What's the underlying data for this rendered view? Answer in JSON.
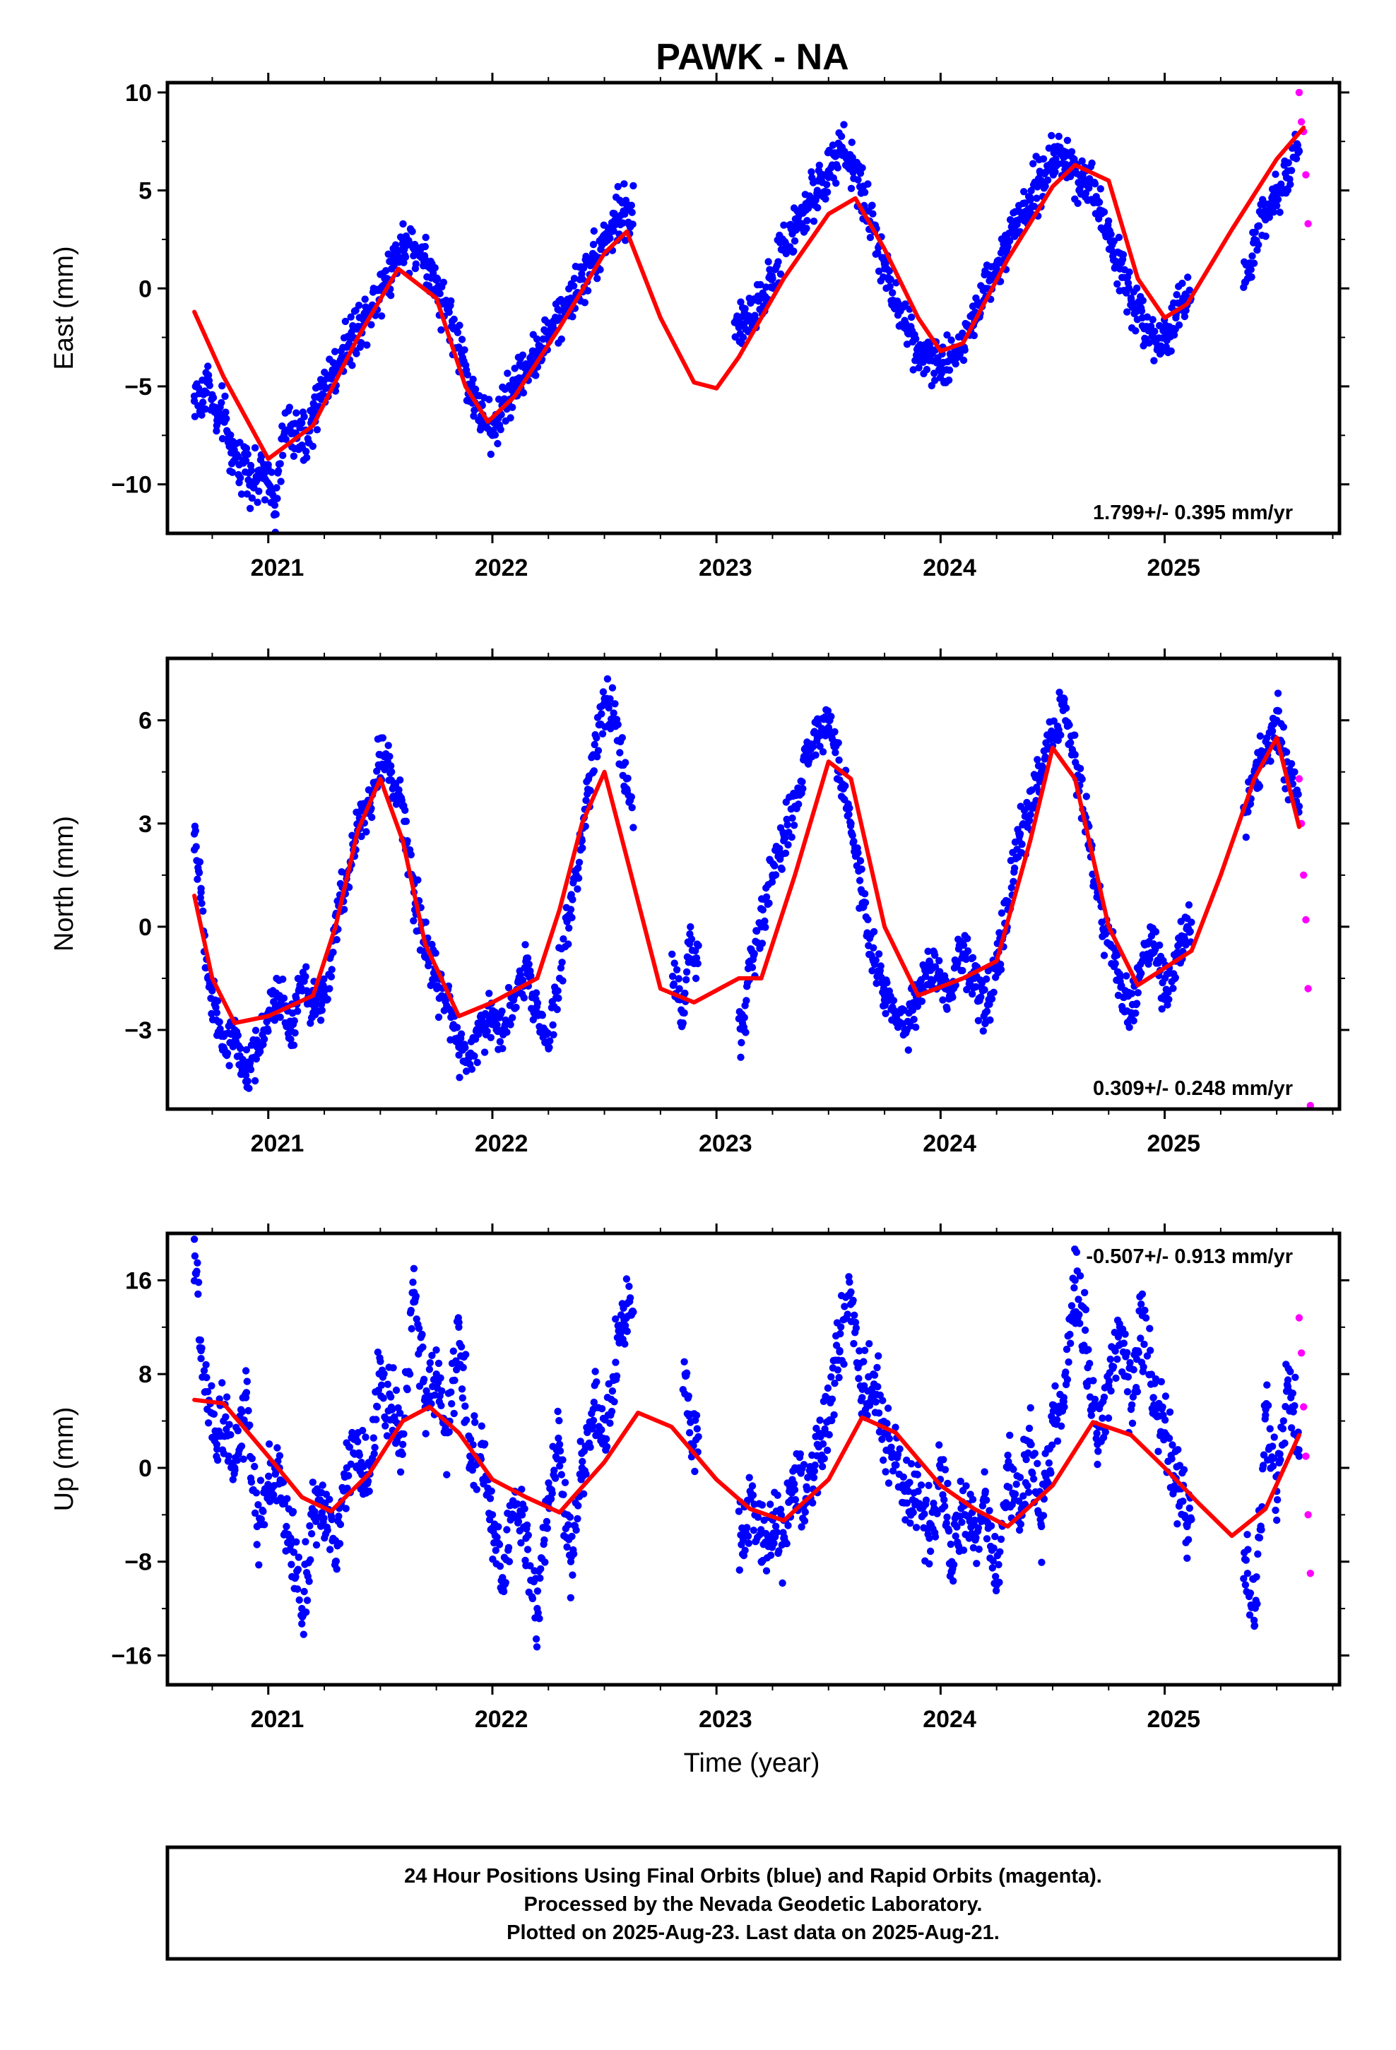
{
  "title": "PAWK - NA",
  "xlabel": "Time (year)",
  "footer": {
    "line1": "24 Hour Positions Using Final Orbits (blue) and Rapid Orbits (magenta).",
    "line2": "Processed by the Nevada Geodetic Laboratory.",
    "line3": "Plotted on 2025-Aug-23. Last data on 2025-Aug-21."
  },
  "colors": {
    "final_orbits": "#0000ff",
    "rapid_orbits": "#ff00ff",
    "model_curve": "#ff0000",
    "frame": "#000000"
  },
  "chart_data": [
    {
      "type": "scatter",
      "ylabel": "East (mm)",
      "rate_label": "1.799+/- 0.395 mm/yr",
      "rate_position": "bottom-right",
      "xlim": [
        2020.55,
        2025.78
      ],
      "ylim": [
        -12.5,
        10.5
      ],
      "yticks": [
        10,
        5,
        0,
        -5,
        -10
      ],
      "yticklabels": [
        "10",
        "5",
        "0",
        "−5",
        "−10"
      ],
      "xticks": [
        2021,
        2022,
        2023,
        2024,
        2025
      ],
      "gaps": [
        [
          2022.63,
          2023.08
        ],
        [
          2025.12,
          2025.35
        ]
      ],
      "model_curve": {
        "x": [
          2020.67,
          2020.8,
          2021.0,
          2021.2,
          2021.4,
          2021.58,
          2021.75,
          2021.88,
          2021.98,
          2022.1,
          2022.3,
          2022.5,
          2022.6,
          2022.75,
          2022.9,
          2023.0,
          2023.1,
          2023.3,
          2023.5,
          2023.62,
          2023.75,
          2023.9,
          2024.0,
          2024.1,
          2024.3,
          2024.5,
          2024.6,
          2024.75,
          2024.88,
          2025.0,
          2025.1,
          2025.3,
          2025.5,
          2025.62
        ],
        "y": [
          -1.2,
          -4.5,
          -8.7,
          -7.0,
          -2.5,
          1.0,
          -0.5,
          -5.0,
          -6.8,
          -5.5,
          -2.0,
          1.8,
          2.9,
          -1.5,
          -4.8,
          -5.1,
          -3.5,
          0.5,
          3.8,
          4.6,
          2.0,
          -1.5,
          -3.2,
          -2.8,
          1.5,
          5.2,
          6.3,
          5.5,
          0.5,
          -1.5,
          -0.8,
          3.0,
          6.6,
          8.2
        ]
      },
      "final_points": {
        "x": [
          2020.67,
          2020.7,
          2020.73,
          2020.77,
          2020.8,
          2020.83,
          2020.87,
          2020.9,
          2020.93,
          2020.97,
          2021.0,
          2021.03,
          2021.07,
          2021.1,
          2021.15,
          2021.2,
          2021.25,
          2021.3,
          2021.35,
          2021.4,
          2021.45,
          2021.5,
          2021.55,
          2021.6,
          2021.65,
          2021.7,
          2021.75,
          2021.8,
          2021.85,
          2021.9,
          2021.95,
          2022.0,
          2022.05,
          2022.1,
          2022.15,
          2022.2,
          2022.25,
          2022.3,
          2022.35,
          2022.4,
          2022.45,
          2022.5,
          2022.55,
          2022.6,
          2023.1,
          2023.15,
          2023.2,
          2023.25,
          2023.3,
          2023.35,
          2023.4,
          2023.45,
          2023.5,
          2023.55,
          2023.6,
          2023.65,
          2023.7,
          2023.75,
          2023.8,
          2023.85,
          2023.9,
          2023.95,
          2024.0,
          2024.05,
          2024.1,
          2024.15,
          2024.2,
          2024.25,
          2024.3,
          2024.35,
          2024.4,
          2024.45,
          2024.5,
          2024.55,
          2024.6,
          2024.65,
          2024.7,
          2024.75,
          2024.8,
          2024.85,
          2024.9,
          2024.95,
          2025.0,
          2025.05,
          2025.1,
          2025.37,
          2025.4,
          2025.45,
          2025.5,
          2025.55,
          2025.6
        ],
        "y": [
          -5.5,
          -6.0,
          -4.5,
          -7.0,
          -6.5,
          -8.0,
          -9.0,
          -8.5,
          -10.0,
          -9.5,
          -9.0,
          -11.5,
          -7.5,
          -7.0,
          -8.0,
          -6.5,
          -5.0,
          -4.0,
          -3.0,
          -2.0,
          -1.0,
          0.0,
          1.0,
          2.5,
          2.0,
          1.5,
          0.0,
          -1.0,
          -3.0,
          -5.0,
          -6.5,
          -7.5,
          -6.0,
          -5.0,
          -4.0,
          -3.5,
          -2.5,
          -1.5,
          -0.5,
          0.5,
          1.5,
          2.5,
          3.5,
          4.0,
          -2.0,
          -1.5,
          -0.5,
          0.5,
          2.0,
          3.0,
          4.0,
          5.0,
          6.0,
          7.0,
          6.5,
          5.0,
          3.0,
          1.0,
          -1.0,
          -2.0,
          -3.0,
          -3.5,
          -4.0,
          -3.5,
          -2.5,
          -1.5,
          0.0,
          1.0,
          2.5,
          3.5,
          4.5,
          5.5,
          6.5,
          7.0,
          6.0,
          5.5,
          4.5,
          3.0,
          1.0,
          -0.5,
          -1.5,
          -2.5,
          -2.5,
          -1.5,
          -0.5,
          0.5,
          2.5,
          3.5,
          5.0,
          6.0,
          7.0
        ]
      },
      "rapid_points": {
        "x": [
          2025.6,
          2025.61,
          2025.62,
          2025.63,
          2025.64
        ],
        "y": [
          10.0,
          8.5,
          8.0,
          5.8,
          3.3
        ]
      }
    },
    {
      "type": "scatter",
      "ylabel": "North (mm)",
      "rate_label": "0.309+/- 0.248 mm/yr",
      "rate_position": "bottom-right",
      "xlim": [
        2020.55,
        2025.78
      ],
      "ylim": [
        -5.3,
        7.8
      ],
      "yticks": [
        6,
        3,
        0,
        -3
      ],
      "yticklabels": [
        "6",
        "3",
        "0",
        "−3"
      ],
      "xticks": [
        2021,
        2022,
        2023,
        2024,
        2025
      ],
      "gaps": [
        [
          2022.63,
          2022.8
        ],
        [
          2022.92,
          2023.1
        ],
        [
          2025.12,
          2025.35
        ]
      ],
      "model_curve": {
        "x": [
          2020.67,
          2020.75,
          2020.85,
          2021.0,
          2021.2,
          2021.3,
          2021.4,
          2021.5,
          2021.6,
          2021.7,
          2021.85,
          2022.0,
          2022.2,
          2022.3,
          2022.4,
          2022.5,
          2022.6,
          2022.75,
          2022.9,
          2023.1,
          2023.2,
          2023.35,
          2023.5,
          2023.6,
          2023.75,
          2023.9,
          2024.1,
          2024.25,
          2024.4,
          2024.5,
          2024.6,
          2024.75,
          2024.88,
          2025.0,
          2025.12,
          2025.25,
          2025.4,
          2025.5,
          2025.6
        ],
        "y": [
          0.9,
          -1.5,
          -2.8,
          -2.6,
          -2.0,
          0.0,
          2.8,
          4.3,
          2.5,
          -0.5,
          -2.6,
          -2.2,
          -1.5,
          0.5,
          3.0,
          4.5,
          2.0,
          -1.8,
          -2.2,
          -1.5,
          -1.5,
          1.5,
          4.8,
          4.3,
          0.0,
          -2.0,
          -1.5,
          -1.0,
          2.5,
          5.2,
          4.3,
          0.0,
          -1.7,
          -1.2,
          -0.7,
          1.5,
          4.3,
          5.5,
          2.9
        ]
      },
      "final_points": {
        "x": [
          2020.67,
          2020.7,
          2020.73,
          2020.77,
          2020.8,
          2020.85,
          2020.9,
          2020.95,
          2021.0,
          2021.05,
          2021.1,
          2021.15,
          2021.2,
          2021.25,
          2021.3,
          2021.35,
          2021.4,
          2021.45,
          2021.5,
          2021.55,
          2021.6,
          2021.65,
          2021.7,
          2021.75,
          2021.8,
          2021.85,
          2021.9,
          2021.95,
          2022.0,
          2022.05,
          2022.1,
          2022.15,
          2022.2,
          2022.25,
          2022.3,
          2022.35,
          2022.4,
          2022.45,
          2022.5,
          2022.55,
          2022.6,
          2022.85,
          2022.88,
          2023.12,
          2023.15,
          2023.2,
          2023.25,
          2023.3,
          2023.35,
          2023.4,
          2023.45,
          2023.5,
          2023.55,
          2023.6,
          2023.65,
          2023.7,
          2023.75,
          2023.8,
          2023.85,
          2023.9,
          2023.95,
          2024.0,
          2024.05,
          2024.1,
          2024.15,
          2024.2,
          2024.25,
          2024.3,
          2024.35,
          2024.4,
          2024.45,
          2024.5,
          2024.55,
          2024.6,
          2024.65,
          2024.7,
          2024.75,
          2024.8,
          2024.85,
          2024.9,
          2024.95,
          2025.0,
          2025.05,
          2025.1,
          2025.37,
          2025.4,
          2025.45,
          2025.5,
          2025.55,
          2025.6
        ],
        "y": [
          2.7,
          1.0,
          -1.5,
          -2.5,
          -3.5,
          -3.0,
          -4.5,
          -3.5,
          -2.5,
          -2.0,
          -3.0,
          -1.5,
          -2.5,
          -2.0,
          0.0,
          1.5,
          3.0,
          3.5,
          5.0,
          4.5,
          3.5,
          1.0,
          -0.5,
          -1.5,
          -2.0,
          -3.5,
          -4.0,
          -3.0,
          -2.5,
          -3.0,
          -2.0,
          -1.0,
          -2.5,
          -3.5,
          -1.5,
          0.5,
          2.5,
          5.0,
          6.5,
          6.0,
          4.0,
          -2.5,
          -0.5,
          -3.0,
          -1.0,
          0.0,
          1.5,
          2.5,
          3.5,
          5.0,
          5.5,
          6.0,
          4.5,
          3.0,
          1.0,
          -1.0,
          -2.0,
          -2.5,
          -3.0,
          -2.0,
          -1.0,
          -1.5,
          -2.0,
          -0.5,
          -1.5,
          -2.5,
          -1.0,
          0.5,
          2.5,
          3.5,
          4.5,
          5.5,
          6.5,
          5.0,
          3.0,
          1.0,
          -0.5,
          -1.5,
          -2.5,
          -1.0,
          -0.5,
          -2.0,
          -1.0,
          0.0,
          3.5,
          4.5,
          5.0,
          6.0,
          4.5,
          3.5
        ]
      },
      "rapid_points": {
        "x": [
          2025.6,
          2025.61,
          2025.62,
          2025.63,
          2025.64,
          2025.65
        ],
        "y": [
          4.3,
          3.0,
          1.5,
          0.2,
          -1.8,
          -5.2
        ]
      }
    },
    {
      "type": "scatter",
      "ylabel": "Up (mm)",
      "rate_label": "-0.507+/- 0.913 mm/yr",
      "rate_position": "top-right",
      "xlim": [
        2020.55,
        2025.78
      ],
      "ylim": [
        -18.5,
        20.0
      ],
      "yticks": [
        16,
        8,
        0,
        -8,
        -16
      ],
      "yticklabels": [
        "16",
        "8",
        "0",
        "−8",
        "−16"
      ],
      "xticks": [
        2021,
        2022,
        2023,
        2024,
        2025
      ],
      "gaps": [
        [
          2022.63,
          2022.85
        ],
        [
          2022.92,
          2023.1
        ],
        [
          2025.12,
          2025.35
        ]
      ],
      "model_curve": {
        "x": [
          2020.67,
          2020.8,
          2021.0,
          2021.15,
          2021.28,
          2021.45,
          2021.6,
          2021.72,
          2021.85,
          2022.0,
          2022.15,
          2022.3,
          2022.5,
          2022.65,
          2022.8,
          2023.0,
          2023.15,
          2023.3,
          2023.5,
          2023.65,
          2023.8,
          2024.0,
          2024.15,
          2024.3,
          2024.5,
          2024.68,
          2024.85,
          2025.0,
          2025.15,
          2025.3,
          2025.45,
          2025.6
        ],
        "y": [
          5.8,
          5.5,
          1.0,
          -2.5,
          -3.7,
          -0.5,
          4.0,
          5.2,
          3.0,
          -1.0,
          -2.5,
          -3.8,
          0.5,
          4.7,
          3.5,
          -1.0,
          -3.5,
          -4.5,
          -1.0,
          4.3,
          3.0,
          -1.5,
          -3.5,
          -5.0,
          -1.5,
          3.9,
          2.8,
          0.0,
          -3.0,
          -5.8,
          -3.5,
          2.8
        ]
      },
      "final_points": {
        "x": [
          2020.67,
          2020.7,
          2020.73,
          2020.77,
          2020.8,
          2020.85,
          2020.9,
          2020.95,
          2021.0,
          2021.05,
          2021.1,
          2021.15,
          2021.2,
          2021.25,
          2021.3,
          2021.35,
          2021.4,
          2021.45,
          2021.5,
          2021.55,
          2021.6,
          2021.65,
          2021.7,
          2021.75,
          2021.8,
          2021.85,
          2021.9,
          2021.95,
          2022.0,
          2022.05,
          2022.1,
          2022.15,
          2022.2,
          2022.25,
          2022.3,
          2022.35,
          2022.4,
          2022.45,
          2022.5,
          2022.55,
          2022.6,
          2022.86,
          2022.88,
          2023.12,
          2023.15,
          2023.2,
          2023.25,
          2023.3,
          2023.35,
          2023.4,
          2023.45,
          2023.5,
          2023.55,
          2023.6,
          2023.65,
          2023.7,
          2023.75,
          2023.8,
          2023.85,
          2023.9,
          2023.95,
          2024.0,
          2024.05,
          2024.1,
          2024.15,
          2024.2,
          2024.25,
          2024.3,
          2024.35,
          2024.4,
          2024.45,
          2024.5,
          2024.55,
          2024.6,
          2024.65,
          2024.7,
          2024.75,
          2024.8,
          2024.85,
          2024.9,
          2024.95,
          2025.0,
          2025.05,
          2025.1,
          2025.37,
          2025.4,
          2025.45,
          2025.5,
          2025.55,
          2025.6
        ],
        "y": [
          19.5,
          10.0,
          6.5,
          2.0,
          4.0,
          0.0,
          6.0,
          -5.0,
          -2.0,
          0.0,
          -6.0,
          -12.0,
          -4.0,
          -3.0,
          -8.0,
          0.0,
          3.0,
          -2.0,
          8.0,
          5.0,
          2.0,
          17.0,
          6.0,
          8.0,
          3.0,
          12.0,
          1.0,
          2.0,
          -4.0,
          -10.0,
          -2.0,
          -6.0,
          -12.0,
          -3.0,
          2.0,
          -8.0,
          0.0,
          5.0,
          2.0,
          9.0,
          14.0,
          8.0,
          3.0,
          -6.0,
          -2.0,
          -8.0,
          -4.0,
          -6.0,
          0.0,
          -3.0,
          2.0,
          4.0,
          10.0,
          15.0,
          6.0,
          8.0,
          3.0,
          1.0,
          -3.0,
          -2.0,
          -6.0,
          0.0,
          -8.0,
          -3.0,
          -6.0,
          -2.0,
          -10.0,
          0.0,
          -4.0,
          2.0,
          -5.0,
          4.0,
          6.0,
          16.0,
          10.0,
          2.0,
          7.0,
          12.0,
          5.0,
          13.0,
          6.0,
          3.0,
          -1.0,
          -5.0,
          -9.0,
          -13.5,
          4.5,
          -2.0,
          7.5,
          1.0
        ]
      },
      "rapid_points": {
        "x": [
          2025.6,
          2025.61,
          2025.62,
          2025.63,
          2025.64,
          2025.65
        ],
        "y": [
          12.8,
          9.8,
          5.2,
          1.0,
          -4.0,
          -9.0
        ]
      }
    }
  ]
}
